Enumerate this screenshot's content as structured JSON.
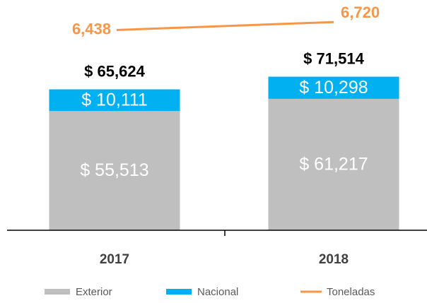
{
  "chart_data": {
    "type": "stacked_bar_line",
    "categories": [
      "2017",
      "2018"
    ],
    "series": [
      {
        "name": "Exterior",
        "color": "#bfbfbf",
        "values": [
          55513,
          61217
        ],
        "value_labels": [
          "$ 55,513",
          "$ 61,217"
        ]
      },
      {
        "name": "Nacional",
        "color": "#00b0f0",
        "values": [
          10111,
          10298
        ],
        "value_labels": [
          "$ 10,111",
          "$ 10,298"
        ]
      },
      {
        "name": "Toneladas",
        "color": "#f79646",
        "values": [
          6438,
          6720
        ],
        "value_labels": [
          "6,438",
          "6,720"
        ],
        "axis": "y2",
        "type": "line"
      }
    ],
    "totals": {
      "values": [
        65624,
        71514
      ],
      "value_labels": [
        "$ 65,624",
        "$ 71,514"
      ]
    },
    "ylim": [
      0,
      100000
    ],
    "y2lim": [
      6000,
      7000
    ],
    "legend": "bottom"
  }
}
